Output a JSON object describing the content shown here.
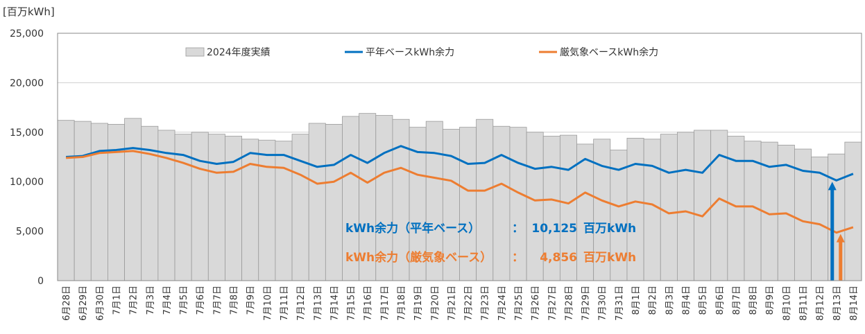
{
  "chart_data": {
    "type": "bar+line",
    "unit_label": "[百万kWh]",
    "ylim": [
      0,
      25000
    ],
    "yticks": [
      0,
      5000,
      10000,
      15000,
      20000,
      25000
    ],
    "ytick_labels": [
      "0",
      "5,000",
      "10,000",
      "15,000",
      "20,000",
      "25,000"
    ],
    "grid": true,
    "legend_position": "top",
    "categories": [
      "6月28日",
      "6月29日",
      "6月30日",
      "7月1日",
      "7月2日",
      "7月3日",
      "7月4日",
      "7月5日",
      "7月6日",
      "7月7日",
      "7月8日",
      "7月9日",
      "7月10日",
      "7月11日",
      "7月12日",
      "7月13日",
      "7月14日",
      "7月15日",
      "7月16日",
      "7月17日",
      "7月18日",
      "7月19日",
      "7月20日",
      "7月21日",
      "7月22日",
      "7月23日",
      "7月24日",
      "7月25日",
      "7月26日",
      "7月27日",
      "7月28日",
      "7月29日",
      "7月30日",
      "7月31日",
      "8月1日",
      "8月2日",
      "8月3日",
      "8月4日",
      "8月5日",
      "8月6日",
      "8月7日",
      "8月8日",
      "8月9日",
      "8月10日",
      "8月11日",
      "8月12日",
      "8月13日",
      "8月14日"
    ],
    "series": [
      {
        "name": "2024年度実績",
        "kind": "bar",
        "color": "#d9d9d9",
        "values": [
          16200,
          16100,
          15900,
          15800,
          16400,
          15600,
          15200,
          14800,
          15000,
          14800,
          14600,
          14300,
          14200,
          14100,
          14800,
          15900,
          15800,
          16600,
          16900,
          16700,
          16300,
          15500,
          16100,
          15300,
          15500,
          16300,
          15600,
          15500,
          15000,
          14600,
          14700,
          13800,
          14300,
          13200,
          14400,
          14300,
          14800,
          15000,
          15200,
          15200,
          14600,
          14100,
          14000,
          13700,
          13300,
          12500,
          12800,
          14000
        ]
      },
      {
        "name": "平年ベースkWh余力",
        "kind": "line",
        "color": "#0070c0",
        "values": [
          12500,
          12600,
          13100,
          13200,
          13400,
          13200,
          12900,
          12700,
          12100,
          11800,
          12000,
          12900,
          12700,
          12700,
          12100,
          11500,
          11700,
          12700,
          11900,
          12900,
          13600,
          13000,
          12900,
          12600,
          11800,
          11900,
          12700,
          11900,
          11300,
          11500,
          11200,
          12300,
          11600,
          11200,
          11800,
          11600,
          10900,
          11200,
          10900,
          12700,
          12100,
          12100,
          11500,
          11700,
          11100,
          10900,
          10125,
          10800
        ]
      },
      {
        "name": "厳気象ベースkWh余力",
        "kind": "line",
        "color": "#ed7d31",
        "values": [
          12400,
          12500,
          12900,
          13000,
          13100,
          12800,
          12400,
          11900,
          11300,
          10900,
          11000,
          11800,
          11500,
          11400,
          10700,
          9800,
          10000,
          10900,
          9900,
          10900,
          11400,
          10700,
          10400,
          10100,
          9100,
          9100,
          9800,
          8900,
          8100,
          8200,
          7800,
          8900,
          8100,
          7500,
          8000,
          7700,
          6800,
          7000,
          6500,
          8300,
          7500,
          7500,
          6700,
          6800,
          6000,
          5700,
          4856,
          5400
        ]
      }
    ],
    "annotations": [
      {
        "label": "kWh余力（平年ベース）",
        "sep": "：",
        "value": "10,125",
        "unit": "百万kWh",
        "color": "#0070c0"
      },
      {
        "label": "kWh余力（厳気象ベース）",
        "sep": "：",
        "value": "4,856",
        "unit": "百万kWh",
        "color": "#ed7d31"
      }
    ],
    "highlight_index": 46
  }
}
